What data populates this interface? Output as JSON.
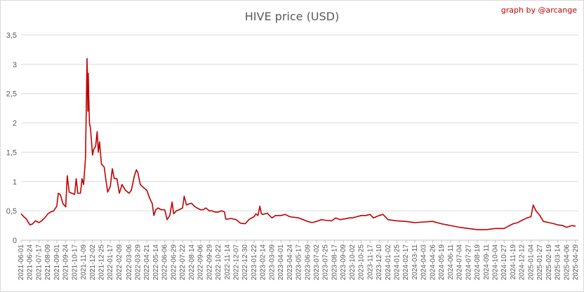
{
  "chart_data": {
    "type": "line",
    "title": "HIVE price (USD)",
    "credit": "graph by @arcange",
    "xlabel": "",
    "ylabel": "",
    "ylim": [
      0,
      3.5
    ],
    "ytick_values": [
      0,
      0.5,
      1,
      1.5,
      2,
      2.5,
      3,
      3.5
    ],
    "ytick_labels": [
      "0",
      "0,5",
      "1",
      "1,5",
      "2",
      "2,5",
      "3",
      "3,5"
    ],
    "grid": "horizontal",
    "legend": "none",
    "line_color": "#c00000",
    "x_tick_labels": [
      "2021-06-01",
      "2021-06-24",
      "2021-07-17",
      "2021-08-09",
      "2021-09-01",
      "2021-09-24",
      "2021-10-17",
      "2021-11-09",
      "2021-12-02",
      "2021-12-25",
      "2022-01-17",
      "2022-02-09",
      "2022-03-06",
      "2022-03-29",
      "2022-04-21",
      "2022-05-14",
      "2022-06-06",
      "2022-06-29",
      "2022-07-22",
      "2022-08-14",
      "2022-09-06",
      "2022-09-29",
      "2022-10-22",
      "2022-11-14",
      "2022-12-07",
      "2022-12-30",
      "2023-01-22",
      "2023-02-14",
      "2023-03-09",
      "2023-04-01",
      "2023-04-24",
      "2023-05-17",
      "2023-06-09",
      "2023-07-02",
      "2023-07-25",
      "2023-08-17",
      "2023-09-09",
      "2023-10-02",
      "2023-10-25",
      "2023-11-17",
      "2023-12-10",
      "2024-01-02",
      "2024-01-25",
      "2024-02-17",
      "2024-03-11",
      "2024-04-03",
      "2024-04-26",
      "2024-05-19",
      "2024-06-11",
      "2024-07-04",
      "2024-07-27",
      "2024-08-19",
      "2024-09-11",
      "2024-10-04",
      "2024-10-27",
      "2024-11-19",
      "2024-12-12",
      "2025-01-04",
      "2025-01-27",
      "2025-02-19",
      "2025-03-14",
      "2025-04-06",
      "2025-04-29"
    ],
    "series": [
      {
        "values": [
          [
            "2021-06-01",
            0.45
          ],
          [
            "2021-06-08",
            0.4
          ],
          [
            "2021-06-15",
            0.36
          ],
          [
            "2021-06-24",
            0.26
          ],
          [
            "2021-07-01",
            0.28
          ],
          [
            "2021-07-08",
            0.33
          ],
          [
            "2021-07-17",
            0.3
          ],
          [
            "2021-07-24",
            0.33
          ],
          [
            "2021-08-01",
            0.38
          ],
          [
            "2021-08-09",
            0.45
          ],
          [
            "2021-08-16",
            0.48
          ],
          [
            "2021-08-24",
            0.5
          ],
          [
            "2021-09-01",
            0.58
          ],
          [
            "2021-09-05",
            0.8
          ],
          [
            "2021-09-10",
            0.78
          ],
          [
            "2021-09-17",
            0.62
          ],
          [
            "2021-09-24",
            0.57
          ],
          [
            "2021-09-28",
            1.1
          ],
          [
            "2021-10-03",
            0.82
          ],
          [
            "2021-10-10",
            0.8
          ],
          [
            "2021-10-17",
            0.78
          ],
          [
            "2021-10-21",
            1.05
          ],
          [
            "2021-10-25",
            0.8
          ],
          [
            "2021-11-01",
            0.8
          ],
          [
            "2021-11-05",
            1.05
          ],
          [
            "2021-11-09",
            0.95
          ],
          [
            "2021-11-14",
            1.4
          ],
          [
            "2021-11-18",
            3.1
          ],
          [
            "2021-11-20",
            2.2
          ],
          [
            "2021-11-21",
            2.85
          ],
          [
            "2021-11-24",
            2.0
          ],
          [
            "2021-11-27",
            1.9
          ],
          [
            "2021-12-02",
            1.45
          ],
          [
            "2021-12-05",
            1.55
          ],
          [
            "2021-12-10",
            1.6
          ],
          [
            "2021-12-14",
            1.85
          ],
          [
            "2021-12-17",
            1.5
          ],
          [
            "2021-12-20",
            1.68
          ],
          [
            "2021-12-25",
            1.3
          ],
          [
            "2022-01-01",
            1.25
          ],
          [
            "2022-01-06",
            1.0
          ],
          [
            "2022-01-10",
            0.82
          ],
          [
            "2022-01-17",
            0.92
          ],
          [
            "2022-01-22",
            1.22
          ],
          [
            "2022-01-27",
            1.05
          ],
          [
            "2022-02-03",
            1.05
          ],
          [
            "2022-02-09",
            0.8
          ],
          [
            "2022-02-16",
            0.95
          ],
          [
            "2022-02-25",
            0.85
          ],
          [
            "2022-03-06",
            0.8
          ],
          [
            "2022-03-12",
            0.85
          ],
          [
            "2022-03-20",
            1.1
          ],
          [
            "2022-03-25",
            1.2
          ],
          [
            "2022-03-29",
            1.15
          ],
          [
            "2022-04-04",
            0.95
          ],
          [
            "2022-04-12",
            0.9
          ],
          [
            "2022-04-21",
            0.85
          ],
          [
            "2022-04-28",
            0.72
          ],
          [
            "2022-05-05",
            0.62
          ],
          [
            "2022-05-09",
            0.42
          ],
          [
            "2022-05-14",
            0.52
          ],
          [
            "2022-05-20",
            0.55
          ],
          [
            "2022-05-28",
            0.52
          ],
          [
            "2022-06-06",
            0.52
          ],
          [
            "2022-06-12",
            0.35
          ],
          [
            "2022-06-19",
            0.42
          ],
          [
            "2022-06-25",
            0.65
          ],
          [
            "2022-06-29",
            0.45
          ],
          [
            "2022-07-06",
            0.5
          ],
          [
            "2022-07-13",
            0.52
          ],
          [
            "2022-07-22",
            0.55
          ],
          [
            "2022-07-26",
            0.75
          ],
          [
            "2022-08-01",
            0.6
          ],
          [
            "2022-08-08",
            0.62
          ],
          [
            "2022-08-14",
            0.63
          ],
          [
            "2022-08-21",
            0.58
          ],
          [
            "2022-08-28",
            0.55
          ],
          [
            "2022-09-06",
            0.52
          ],
          [
            "2022-09-13",
            0.52
          ],
          [
            "2022-09-20",
            0.55
          ],
          [
            "2022-09-29",
            0.5
          ],
          [
            "2022-10-06",
            0.5
          ],
          [
            "2022-10-13",
            0.48
          ],
          [
            "2022-10-22",
            0.48
          ],
          [
            "2022-10-30",
            0.5
          ],
          [
            "2022-11-07",
            0.48
          ],
          [
            "2022-11-10",
            0.36
          ],
          [
            "2022-11-14",
            0.36
          ],
          [
            "2022-11-24",
            0.37
          ],
          [
            "2022-12-07",
            0.35
          ],
          [
            "2022-12-18",
            0.29
          ],
          [
            "2022-12-30",
            0.28
          ],
          [
            "2023-01-10",
            0.36
          ],
          [
            "2023-01-22",
            0.4
          ],
          [
            "2023-01-27",
            0.45
          ],
          [
            "2023-02-01",
            0.42
          ],
          [
            "2023-02-06",
            0.58
          ],
          [
            "2023-02-10",
            0.45
          ],
          [
            "2023-02-14",
            0.44
          ],
          [
            "2023-02-25",
            0.46
          ],
          [
            "2023-03-09",
            0.38
          ],
          [
            "2023-03-18",
            0.42
          ],
          [
            "2023-04-01",
            0.42
          ],
          [
            "2023-04-12",
            0.44
          ],
          [
            "2023-04-24",
            0.4
          ],
          [
            "2023-05-17",
            0.38
          ],
          [
            "2023-06-09",
            0.32
          ],
          [
            "2023-06-20",
            0.3
          ],
          [
            "2023-07-02",
            0.32
          ],
          [
            "2023-07-14",
            0.35
          ],
          [
            "2023-07-25",
            0.34
          ],
          [
            "2023-08-10",
            0.33
          ],
          [
            "2023-08-20",
            0.38
          ],
          [
            "2023-09-01",
            0.35
          ],
          [
            "2023-09-09",
            0.36
          ],
          [
            "2023-09-25",
            0.38
          ],
          [
            "2023-10-02",
            0.38
          ],
          [
            "2023-10-25",
            0.42
          ],
          [
            "2023-11-05",
            0.42
          ],
          [
            "2023-11-17",
            0.44
          ],
          [
            "2023-11-25",
            0.38
          ],
          [
            "2023-12-10",
            0.42
          ],
          [
            "2023-12-20",
            0.44
          ],
          [
            "2024-01-02",
            0.35
          ],
          [
            "2024-01-25",
            0.33
          ],
          [
            "2024-02-17",
            0.32
          ],
          [
            "2024-03-11",
            0.3
          ],
          [
            "2024-04-03",
            0.31
          ],
          [
            "2024-04-26",
            0.32
          ],
          [
            "2024-05-19",
            0.28
          ],
          [
            "2024-06-11",
            0.25
          ],
          [
            "2024-07-04",
            0.22
          ],
          [
            "2024-07-27",
            0.2
          ],
          [
            "2024-08-19",
            0.18
          ],
          [
            "2024-09-11",
            0.18
          ],
          [
            "2024-10-04",
            0.2
          ],
          [
            "2024-10-27",
            0.2
          ],
          [
            "2024-11-10",
            0.25
          ],
          [
            "2024-11-19",
            0.28
          ],
          [
            "2024-12-01",
            0.3
          ],
          [
            "2024-12-12",
            0.34
          ],
          [
            "2024-12-25",
            0.38
          ],
          [
            "2025-01-04",
            0.4
          ],
          [
            "2025-01-10",
            0.6
          ],
          [
            "2025-01-17",
            0.5
          ],
          [
            "2025-01-27",
            0.42
          ],
          [
            "2025-02-05",
            0.32
          ],
          [
            "2025-02-19",
            0.3
          ],
          [
            "2025-03-05",
            0.28
          ],
          [
            "2025-03-14",
            0.26
          ],
          [
            "2025-03-27",
            0.25
          ],
          [
            "2025-04-06",
            0.22
          ],
          [
            "2025-04-19",
            0.25
          ],
          [
            "2025-04-29",
            0.24
          ]
        ]
      }
    ]
  }
}
